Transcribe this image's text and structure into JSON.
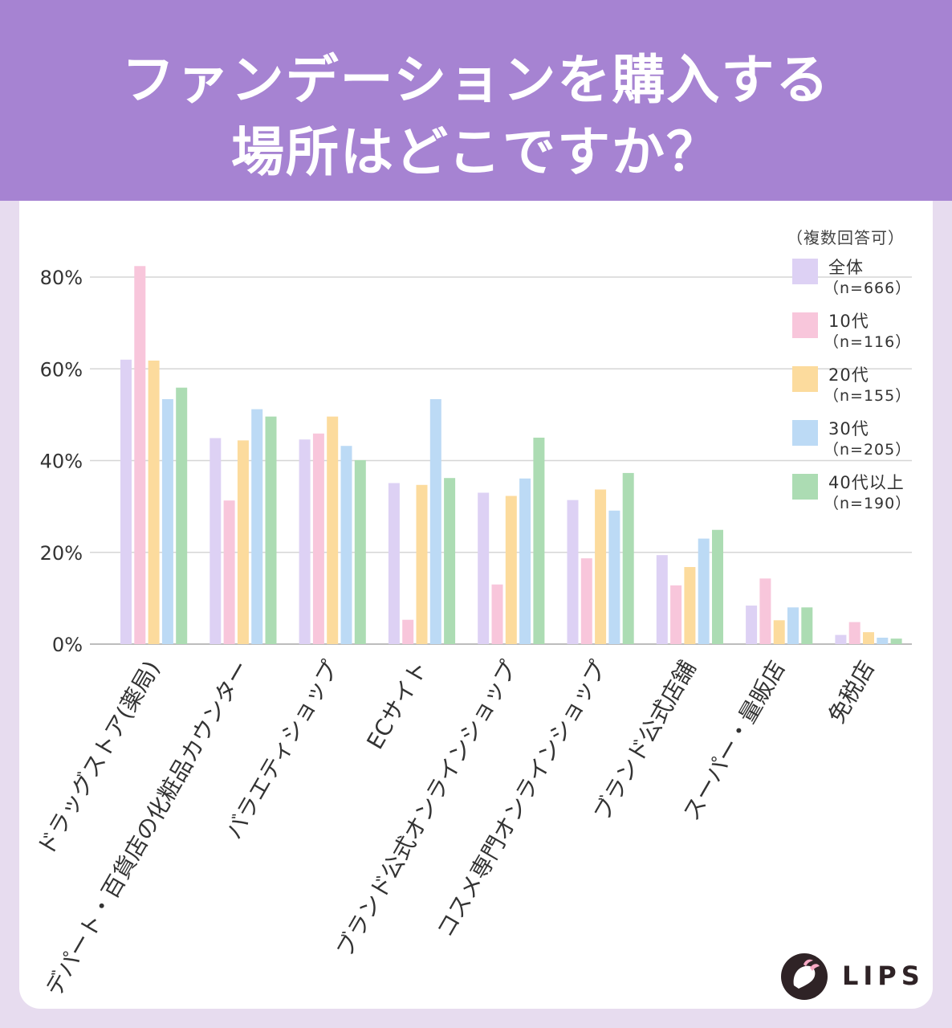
{
  "header": {
    "title_line1": "ファンデーションを購入する",
    "title_line2": "場所はどこですか？"
  },
  "legend": {
    "note": "（複数回答可）",
    "items": [
      {
        "name": "全体",
        "n": "（n=666）",
        "color": "#ddd1f4"
      },
      {
        "name": "10代",
        "n": "（n=116）",
        "color": "#f8c6db"
      },
      {
        "name": "20代",
        "n": "（n=155）",
        "color": "#fcdb9d"
      },
      {
        "name": "30代",
        "n": "（n=205）",
        "color": "#bcdaf5"
      },
      {
        "name": "40代以上",
        "n": "（n=190）",
        "color": "#acdcb3"
      }
    ]
  },
  "chart_data": {
    "type": "bar",
    "title": "ファンデーションを購入する場所はどこですか？",
    "note": "（複数回答可）",
    "xlabel": "",
    "ylabel": "",
    "ylim": [
      0,
      80
    ],
    "yticks": [
      0,
      20,
      40,
      60,
      80
    ],
    "ytick_labels": [
      "0%",
      "20%",
      "40%",
      "60%",
      "80%"
    ],
    "grid": true,
    "legend_position": "top-right",
    "categories": [
      "ドラッグストア(薬局)",
      "デパート・百貨店の化粧品カウンター",
      "バラエティショップ",
      "ECサイト",
      "ブランド公式オンラインショップ",
      "コスメ専門オンラインショップ",
      "ブランド公式店舗",
      "スーパー・量販店",
      "免税店"
    ],
    "series": [
      {
        "name": "全体（n=666）",
        "color": "#ddd1f4",
        "values": [
          62.0,
          44.9,
          44.6,
          35.1,
          33.0,
          31.4,
          19.4,
          8.4,
          2.0
        ]
      },
      {
        "name": "10代（n=116）",
        "color": "#f8c6db",
        "values": [
          82.4,
          31.3,
          45.9,
          5.3,
          13.0,
          18.7,
          12.8,
          14.3,
          4.8
        ]
      },
      {
        "name": "20代（n=155）",
        "color": "#fcdb9d",
        "values": [
          61.8,
          44.4,
          49.6,
          34.7,
          32.3,
          33.7,
          16.8,
          5.2,
          2.6
        ]
      },
      {
        "name": "30代（n=205）",
        "color": "#bcdaf5",
        "values": [
          53.4,
          51.2,
          43.2,
          53.4,
          36.1,
          29.1,
          23.0,
          8.0,
          1.4
        ]
      },
      {
        "name": "40代以上（n=190）",
        "color": "#acdcb3",
        "values": [
          55.9,
          49.6,
          40.1,
          36.2,
          45.0,
          37.3,
          24.9,
          8.0,
          1.2
        ]
      }
    ]
  },
  "logo": {
    "text": "LIPS"
  }
}
